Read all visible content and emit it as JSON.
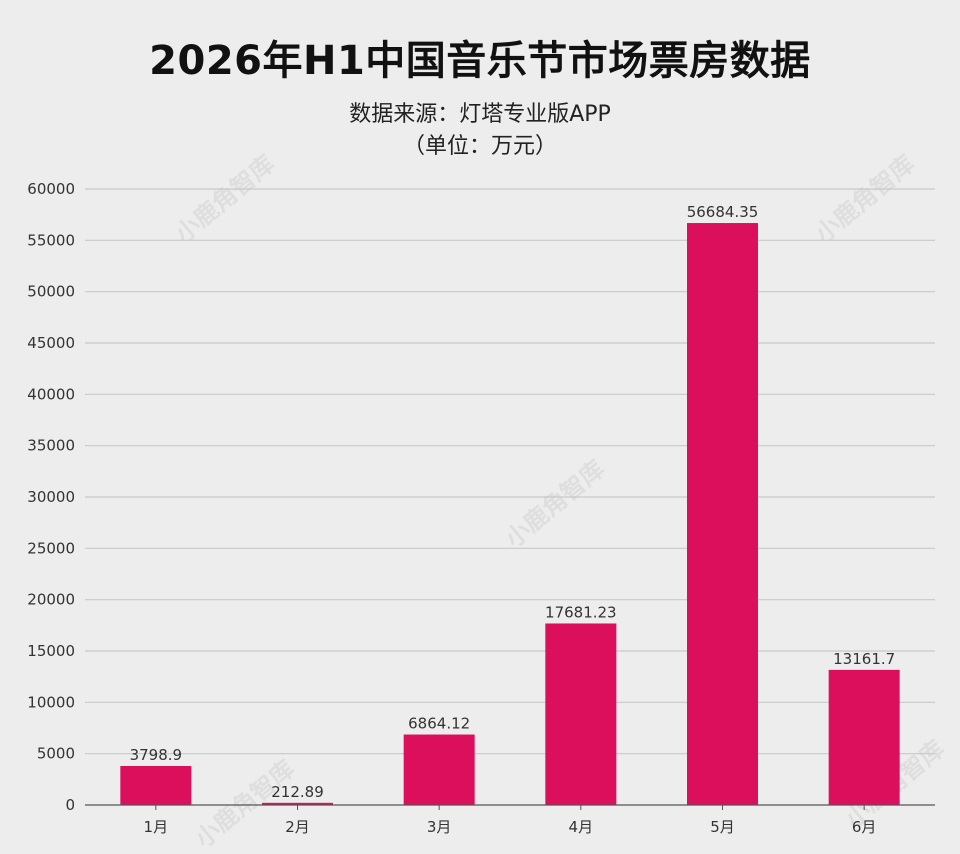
{
  "chart_data": {
    "type": "bar",
    "title": "2026年H1中国音乐节市场票房数据",
    "subtitle": "数据来源：灯塔专业版APP",
    "unit_note": "（单位：万元）",
    "categories": [
      "1月",
      "2月",
      "3月",
      "4月",
      "5月",
      "6月"
    ],
    "values": [
      3798.9,
      212.89,
      6864.12,
      17681.23,
      56684.35,
      13161.7
    ],
    "data_labels": [
      "3798.9",
      "212.89",
      "6864.12",
      "17681.23",
      "56684.35",
      "13161.7"
    ],
    "yticks": [
      "0",
      "5000",
      "10000",
      "15000",
      "20000",
      "25000",
      "30000",
      "35000",
      "40000",
      "45000",
      "50000",
      "55000",
      "60000"
    ],
    "ylim": [
      0,
      60000
    ],
    "grid": true,
    "bar_color": "#dc0f5c",
    "xlabel": "",
    "ylabel": ""
  },
  "watermark": "小鹿角智库"
}
